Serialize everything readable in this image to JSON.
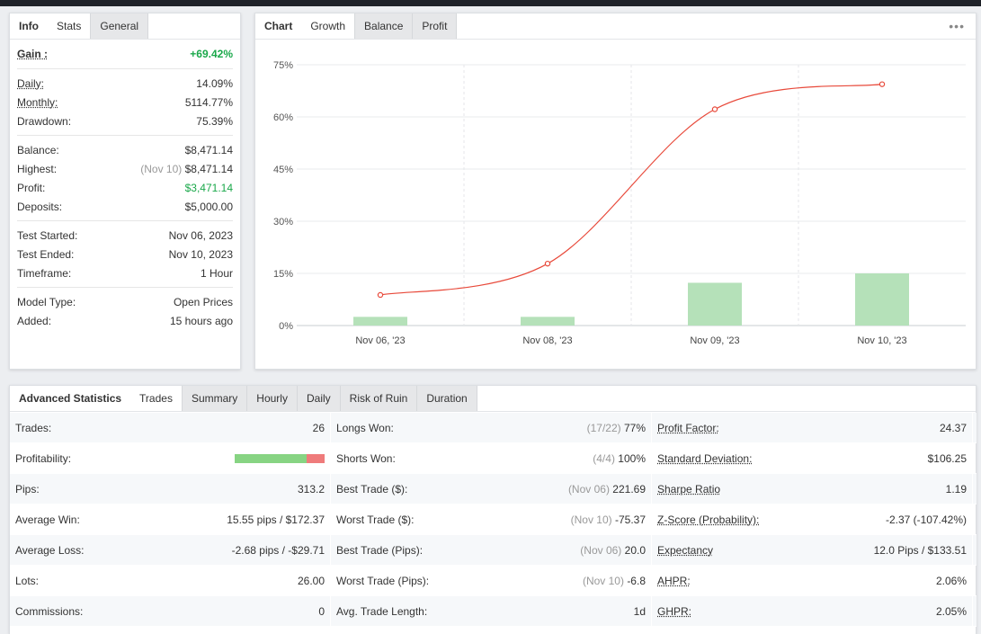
{
  "info_panel": {
    "tabs": [
      "Info",
      "Stats",
      "General"
    ],
    "gain": {
      "label": "Gain :",
      "value": "+69.42%"
    },
    "daily": {
      "label": "Daily:",
      "value": "14.09%"
    },
    "monthly": {
      "label": "Monthly:",
      "value": "5114.77%"
    },
    "drawdown": {
      "label": "Drawdown:",
      "value": "75.39%"
    },
    "balance": {
      "label": "Balance:",
      "value": "$8,471.14"
    },
    "highest": {
      "label": "Highest:",
      "note": "(Nov 10)",
      "value": "$8,471.14"
    },
    "profit": {
      "label": "Profit:",
      "value": "$3,471.14"
    },
    "deposits": {
      "label": "Deposits:",
      "value": "$5,000.00"
    },
    "test_started": {
      "label": "Test Started:",
      "value": "Nov 06, 2023"
    },
    "test_ended": {
      "label": "Test Ended:",
      "value": "Nov 10, 2023"
    },
    "timeframe": {
      "label": "Timeframe:",
      "value": "1 Hour"
    },
    "model_type": {
      "label": "Model Type:",
      "value": "Open Prices"
    },
    "added": {
      "label": "Added:",
      "value": "15 hours ago"
    }
  },
  "chart_panel": {
    "tabs": [
      "Chart",
      "Growth",
      "Balance",
      "Profit"
    ],
    "menu_icon": "more-dots-icon"
  },
  "chart_data": {
    "type": "line",
    "categories": [
      "Nov 06, '23",
      "Nov 08, '23",
      "Nov 09, '23",
      "Nov 10, '23"
    ],
    "yticks": [
      "0%",
      "15%",
      "30%",
      "45%",
      "60%",
      "75%"
    ],
    "ylim": [
      0,
      75
    ],
    "series": [
      {
        "type": "line",
        "values": [
          8.8,
          17.8,
          62.2,
          69.4
        ],
        "color": "#e8493a"
      },
      {
        "type": "bar",
        "values": [
          2.5,
          2.5,
          12.3,
          15.0
        ],
        "color": "#b5e1b9"
      }
    ]
  },
  "advanced": {
    "tabs": [
      "Advanced Statistics",
      "Trades",
      "Summary",
      "Hourly",
      "Daily",
      "Risk of Ruin",
      "Duration"
    ],
    "rows": [
      [
        {
          "label": "Trades:",
          "value": "26"
        },
        {
          "label": "Longs Won:",
          "note": "(17/22)",
          "value": "77%"
        },
        {
          "label": "Profit Factor:",
          "value": "24.37",
          "u": true
        }
      ],
      [
        {
          "label": "Profitability:",
          "value": "",
          "bar": [
            0.8,
            0.2
          ]
        },
        {
          "label": "Shorts Won:",
          "note": "(4/4)",
          "value": "100%"
        },
        {
          "label": "Standard Deviation:",
          "value": "$106.25",
          "u": true
        }
      ],
      [
        {
          "label": "Pips:",
          "value": "313.2"
        },
        {
          "label": "Best Trade ($):",
          "note": "(Nov 06)",
          "value": "221.69"
        },
        {
          "label": "Sharpe Ratio",
          "value": "1.19",
          "u": true
        }
      ],
      [
        {
          "label": "Average Win:",
          "value": "15.55 pips / $172.37"
        },
        {
          "label": "Worst Trade ($):",
          "note": "(Nov 10)",
          "value": "-75.37"
        },
        {
          "label": "Z-Score (Probability):",
          "value": "-2.37 (-107.42%)",
          "u": true
        }
      ],
      [
        {
          "label": "Average Loss:",
          "value": "-2.68 pips / -$29.71"
        },
        {
          "label": "Best Trade (Pips):",
          "note": "(Nov 06)",
          "value": "20.0"
        },
        {
          "label": "Expectancy",
          "value": "12.0 Pips / $133.51",
          "u": true
        }
      ],
      [
        {
          "label": "Lots:",
          "value": "26.00"
        },
        {
          "label": "Worst Trade (Pips):",
          "note": "(Nov 10)",
          "value": "-6.8"
        },
        {
          "label": "AHPR:",
          "value": "2.06%",
          "u": true
        }
      ],
      [
        {
          "label": "Commissions:",
          "value": "0"
        },
        {
          "label": "Avg. Trade Length:",
          "value": "1d"
        },
        {
          "label": "GHPR:",
          "value": "2.05%",
          "u": true
        }
      ]
    ]
  }
}
